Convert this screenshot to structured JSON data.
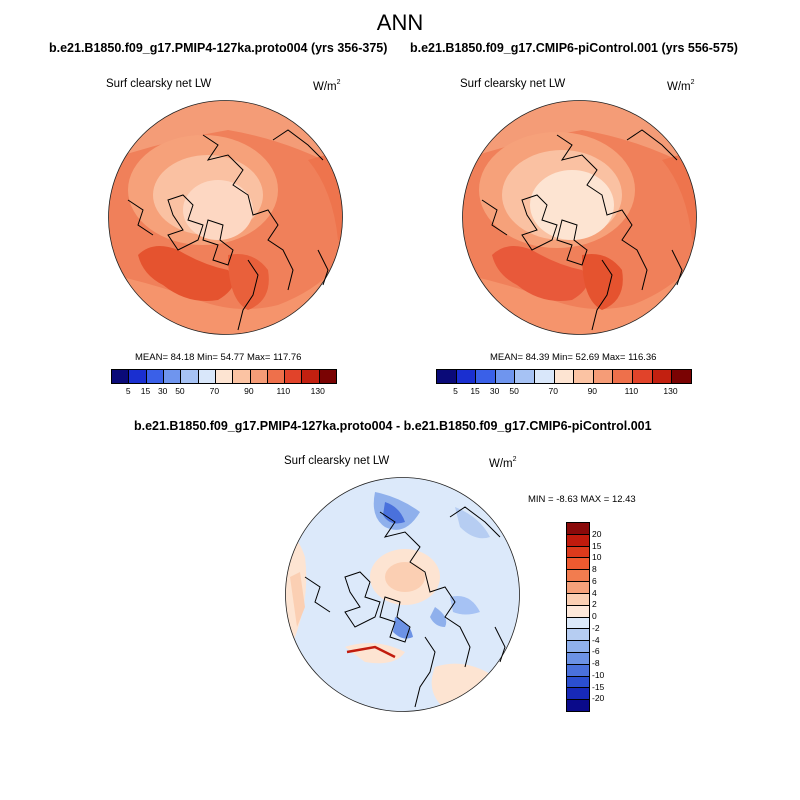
{
  "page": {
    "title": "ANN"
  },
  "panels": [
    {
      "header": "b.e21.B1850.f09_g17.PMIP4-127ka.proto004 (yrs 356-375)",
      "variable": "Surf clearsky net LW",
      "units": "W/m",
      "units_exp": "2",
      "stats": "MEAN=  84.18  Min=  54.77  Max= 117.76"
    },
    {
      "header": "b.e21.B1850.f09_g17.CMIP6-piControl.001 (yrs 556-575)",
      "variable": "Surf clearsky net LW",
      "units": "W/m",
      "units_exp": "2",
      "stats": "MEAN=  84.39  Min=  52.69  Max= 116.36"
    }
  ],
  "colorbar_top": {
    "colors": [
      "#0a0a78",
      "#1a2fd0",
      "#3a60e8",
      "#6f95ee",
      "#a6c2f4",
      "#d9e7fa",
      "#fde4d2",
      "#fbc3a3",
      "#f59c77",
      "#ee704b",
      "#e1432a",
      "#c22010",
      "#7a0303"
    ],
    "ticks": [
      "5",
      "15",
      "30",
      "50",
      "70",
      "90",
      "110",
      "130"
    ]
  },
  "diff": {
    "header": "b.e21.B1850.f09_g17.PMIP4-127ka.proto004 - b.e21.B1850.f09_g17.CMIP6-piControl.001",
    "variable": "Surf clearsky net LW",
    "units": "W/m",
    "units_exp": "2",
    "minmax": "MIN =  -8.63 MAX =  12.43",
    "colors": [
      "#8a0a0a",
      "#c11b0d",
      "#dc3a1c",
      "#ef5a30",
      "#f27c4f",
      "#f6a17a",
      "#fbcfb3",
      "#fde8da",
      "#dce9fa",
      "#b6cdf2",
      "#8fb0ec",
      "#6c92e5",
      "#4a71dc",
      "#2b4fd0",
      "#1729b8",
      "#0a0a8a"
    ],
    "ticks": [
      "20",
      "15",
      "10",
      "8",
      "6",
      "4",
      "2",
      "0",
      "-2",
      "-4",
      "-6",
      "-8",
      "-10",
      "-15",
      "-20"
    ]
  }
}
